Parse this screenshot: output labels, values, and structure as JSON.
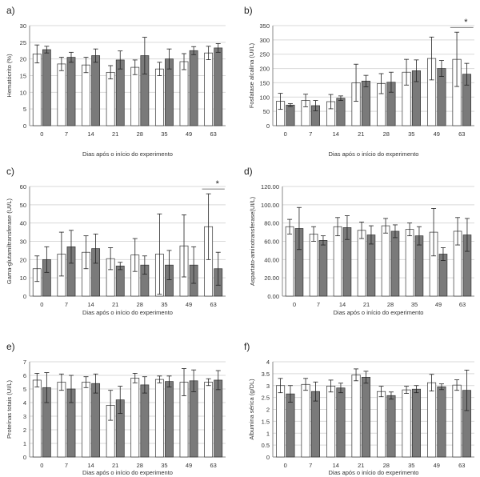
{
  "figure": {
    "xlabel": "Dias após o início do experimento",
    "categories": [
      "0",
      "7",
      "14",
      "21",
      "28",
      "35",
      "49",
      "63"
    ],
    "colors": {
      "open_bar": "#ffffff",
      "filled_bar": "#7a7a7a",
      "stroke": "#333333",
      "axis": "#888888",
      "grid": "#d9d9d9"
    }
  },
  "chart_data": [
    {
      "type": "bar",
      "panel_label": "a)",
      "ylabel": "Hematócrito   (%)",
      "xlabel": "Dias após o início do experimento",
      "categories": [
        "0",
        "7",
        "14",
        "21",
        "28",
        "35",
        "49",
        "63"
      ],
      "ylim": [
        0,
        30
      ],
      "yticks": [
        "0",
        "5",
        "10",
        "15",
        "20",
        "25",
        "30"
      ],
      "series": [
        {
          "name": "open",
          "values": [
            21.5,
            18.5,
            18.2,
            16.0,
            17.5,
            17.0,
            19.2,
            21.8
          ],
          "errors": [
            2.7,
            2.0,
            2.3,
            2.0,
            2.2,
            2.0,
            2.4,
            2.0
          ]
        },
        {
          "name": "filled",
          "values": [
            22.8,
            20.5,
            21.0,
            19.7,
            21.0,
            20.0,
            22.5,
            23.3
          ],
          "errors": [
            1.0,
            1.5,
            2.0,
            2.7,
            5.5,
            3.0,
            1.2,
            1.3
          ]
        }
      ],
      "annotations": []
    },
    {
      "type": "bar",
      "panel_label": "b)",
      "ylabel": "Fosfatase alcalina  (UI/L)",
      "xlabel": "Dias após o início do experimento",
      "categories": [
        "0",
        "7",
        "14",
        "21",
        "28",
        "35",
        "49",
        "63"
      ],
      "ylim": [
        0,
        350
      ],
      "yticks": [
        "0",
        "50",
        "100",
        "150",
        "200",
        "250",
        "300",
        "350"
      ],
      "series": [
        {
          "name": "open",
          "values": [
            85,
            88,
            84,
            150,
            147,
            187,
            235,
            232
          ],
          "errors": [
            28,
            22,
            25,
            65,
            35,
            45,
            75,
            95
          ]
        },
        {
          "name": "filled",
          "values": [
            72,
            70,
            96,
            156,
            152,
            192,
            200,
            180
          ],
          "errors": [
            5,
            18,
            8,
            20,
            35,
            38,
            28,
            38
          ]
        }
      ],
      "annotations": [
        {
          "text": "*",
          "category": "63"
        }
      ]
    },
    {
      "type": "bar",
      "panel_label": "c)",
      "ylabel": "Gama-glutamiltransferase  (UI/L)",
      "xlabel": "Dias após o início do experimento",
      "categories": [
        "0",
        "7",
        "14",
        "21",
        "28",
        "35",
        "49",
        "63"
      ],
      "ylim": [
        0,
        60
      ],
      "yticks": [
        "0",
        "10",
        "20",
        "30",
        "40",
        "50",
        "60"
      ],
      "series": [
        {
          "name": "open",
          "values": [
            15,
            23,
            24,
            20.5,
            22.5,
            23,
            27.5,
            38
          ],
          "errors": [
            7,
            12,
            9,
            6,
            9,
            22,
            17,
            18
          ]
        },
        {
          "name": "filled",
          "values": [
            20,
            27,
            26,
            16.5,
            17,
            17,
            17,
            15
          ],
          "errors": [
            7,
            9,
            8,
            2,
            5,
            8,
            10,
            9
          ]
        }
      ],
      "annotations": [
        {
          "text": "*",
          "category": "63"
        }
      ]
    },
    {
      "type": "bar",
      "panel_label": "d)",
      "ylabel": "Aspartato-aminotransferase(UI/L)",
      "xlabel": "Dias após o início do experimento",
      "categories": [
        "0",
        "7",
        "14",
        "21",
        "28",
        "35",
        "49",
        "63"
      ],
      "ylim": [
        0,
        120
      ],
      "yticks": [
        "0.00",
        "20.00",
        "40.00",
        "60.00",
        "80.00",
        "100.00",
        "120.00"
      ],
      "series": [
        {
          "name": "open",
          "values": [
            76,
            68,
            76,
            72,
            77,
            73,
            70,
            71
          ],
          "errors": [
            8,
            8,
            10,
            9,
            8,
            7,
            26,
            15
          ]
        },
        {
          "name": "filled",
          "values": [
            74,
            61,
            75,
            67,
            71,
            66,
            46,
            67
          ],
          "errors": [
            23,
            5,
            13,
            10,
            7,
            10,
            7,
            18
          ]
        }
      ],
      "annotations": []
    },
    {
      "type": "bar",
      "panel_label": "e)",
      "ylabel": "Proteínas totais (UI/L)",
      "xlabel": "Dias após o início do experimento",
      "categories": [
        "0",
        "7",
        "14",
        "21",
        "28",
        "35",
        "49",
        "63"
      ],
      "ylim": [
        0,
        7
      ],
      "yticks": [
        "0",
        "1",
        "2",
        "3",
        "4",
        "5",
        "6",
        "7"
      ],
      "series": [
        {
          "name": "open",
          "values": [
            5.65,
            5.5,
            5.5,
            3.8,
            5.8,
            5.7,
            5.5,
            5.5
          ],
          "errors": [
            0.5,
            0.6,
            0.4,
            1.1,
            0.35,
            0.25,
            1.0,
            0.25
          ]
        },
        {
          "name": "filled",
          "values": [
            5.1,
            5.0,
            5.4,
            4.2,
            5.3,
            5.55,
            5.6,
            5.65
          ],
          "errors": [
            1.1,
            1.0,
            0.7,
            1.0,
            0.6,
            0.4,
            0.8,
            0.7
          ]
        }
      ],
      "annotations": []
    },
    {
      "type": "bar",
      "panel_label": "f)",
      "ylabel": "Albumina sérica (g/DL)",
      "xlabel": "Dias após o início do experimento",
      "categories": [
        "0",
        "7",
        "14",
        "21",
        "28",
        "35",
        "49",
        "63"
      ],
      "ylim": [
        0,
        4
      ],
      "yticks": [
        "0",
        "0.5",
        "1",
        "1.5",
        "2",
        "2.5",
        "3",
        "3.5",
        "4"
      ],
      "series": [
        {
          "name": "open",
          "values": [
            3.0,
            3.05,
            2.98,
            3.45,
            2.75,
            2.82,
            3.12,
            3.02
          ],
          "errors": [
            0.3,
            0.25,
            0.25,
            0.25,
            0.22,
            0.15,
            0.35,
            0.22
          ]
        },
        {
          "name": "filled",
          "values": [
            2.65,
            2.75,
            2.9,
            3.35,
            2.58,
            2.85,
            2.95,
            2.8
          ],
          "errors": [
            0.35,
            0.4,
            0.2,
            0.25,
            0.15,
            0.15,
            0.12,
            0.85
          ]
        }
      ],
      "annotations": []
    }
  ]
}
